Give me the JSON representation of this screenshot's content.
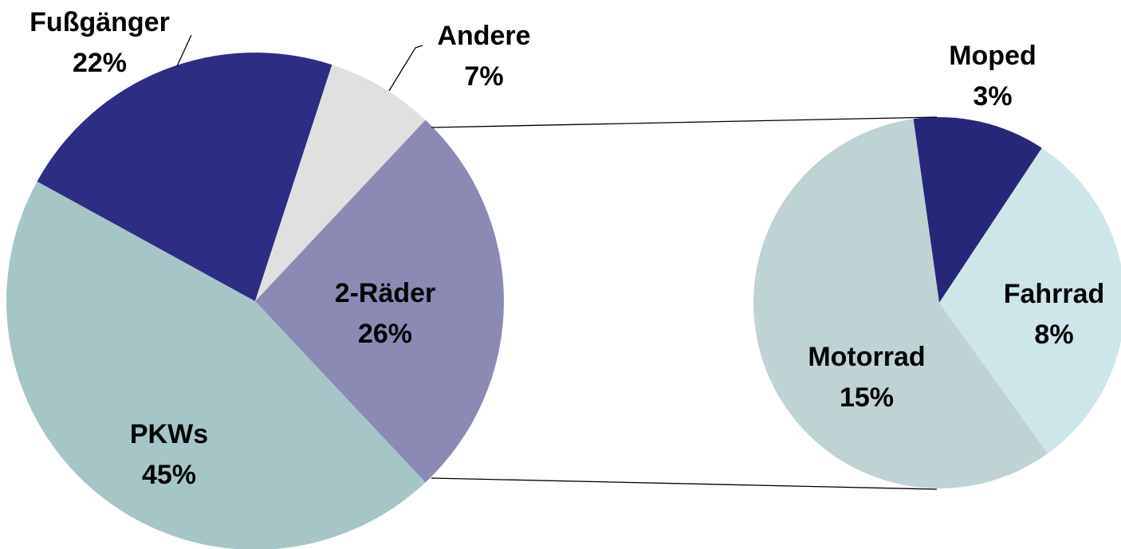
{
  "chart_data": [
    {
      "type": "pie",
      "categories": [
        "2-Räder",
        "PKWs",
        "Fußgänger",
        "Andere"
      ],
      "values": [
        26,
        45,
        22,
        7
      ],
      "value_labels": [
        "26%",
        "45%",
        "22%",
        "7%"
      ],
      "colors": [
        "#8b8ab5",
        "#a6c5c7",
        "#2e2d84",
        "#e0e0e0"
      ]
    },
    {
      "type": "pie",
      "categories": [
        "Moped",
        "Fahrrad",
        "Motorrad"
      ],
      "values": [
        3,
        8,
        15
      ],
      "value_labels": [
        "3%",
        "8%",
        "15%"
      ],
      "colors": [
        "#27277a",
        "#cde6ea",
        "#bfd2d4"
      ]
    }
  ]
}
